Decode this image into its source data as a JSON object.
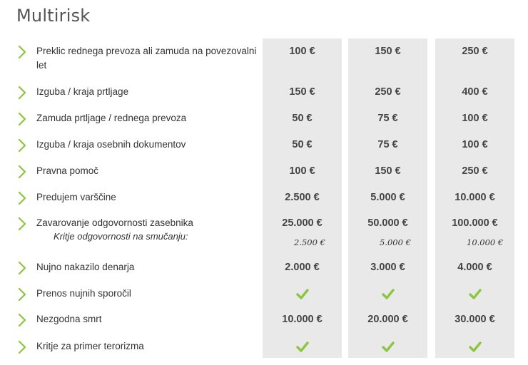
{
  "page": {
    "title": "Multirisk"
  },
  "colors": {
    "accent": "#8cc63f",
    "column_bg": "#e9e9e9"
  },
  "rows": [
    {
      "label": "Preklic rednega prevoza ali zamuda na povezovalni let",
      "values": [
        "100 €",
        "150 €",
        "250 €"
      ]
    },
    {
      "label": "Izguba / kraja prtljage",
      "values": [
        "150 €",
        "250 €",
        "400 €"
      ]
    },
    {
      "label": "Zamuda prtljage / rednega prevoza",
      "values": [
        "50 €",
        "75 €",
        "100 €"
      ]
    },
    {
      "label": "Izguba / kraja osebnih dokumentov",
      "values": [
        "50 €",
        "75 €",
        "100 €"
      ]
    },
    {
      "label": "Pravna pomoč",
      "values": [
        "100 €",
        "150 €",
        "250 €"
      ]
    },
    {
      "label": "Predujem varščine",
      "values": [
        "2.500 €",
        "5.000 €",
        "10.000 €"
      ]
    },
    {
      "label": "Zavarovanje odgovornosti zasebnika",
      "values": [
        "25.000 €",
        "50.000 €",
        "100.000 €"
      ],
      "sublabel": "Kritje odgovornosti na smučanju:",
      "subvalues": [
        "2.500 €",
        "5.000 €",
        "10.000 €"
      ]
    },
    {
      "label": "Nujno nakazilo denarja",
      "values": [
        "2.000 €",
        "3.000 €",
        "4.000 €"
      ]
    },
    {
      "label": "Prenos nujnih sporočil",
      "included": [
        true,
        true,
        true
      ]
    },
    {
      "label": "Nezgodna smrt",
      "values": [
        "10.000 €",
        "20.000 €",
        "30.000 €"
      ]
    },
    {
      "label": "Kritje za primer terorizma",
      "included": [
        true,
        true,
        true
      ]
    }
  ]
}
